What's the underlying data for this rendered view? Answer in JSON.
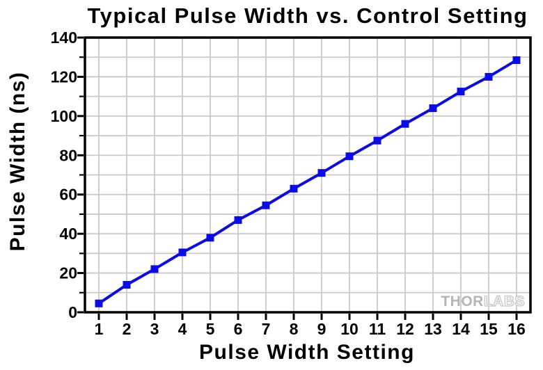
{
  "colors": {
    "line": "#0b0be8",
    "grid": "#c9c9c9",
    "frame": "#000000",
    "background": "#ffffff",
    "watermark_solid": "#b5b5b5",
    "watermark_outline": "#c3c3c3"
  },
  "watermark": {
    "solid": "THOR",
    "outline": "LABS"
  },
  "chart_data": {
    "type": "line",
    "title": "Typical Pulse Width vs. Control Setting",
    "xlabel": "Pulse Width Setting",
    "ylabel": "Pulse Width (ns)",
    "x": [
      1,
      2,
      3,
      4,
      5,
      6,
      7,
      8,
      9,
      10,
      11,
      12,
      13,
      14,
      15,
      16
    ],
    "y": [
      4.5,
      14,
      22,
      30.5,
      38,
      47,
      54.5,
      63,
      71,
      79.5,
      87.5,
      96,
      104,
      112.5,
      120,
      128.5
    ],
    "xlim": [
      0.5,
      16.5
    ],
    "ylim": [
      0,
      140
    ],
    "x_tick_labels": [
      "1",
      "2",
      "3",
      "4",
      "5",
      "6",
      "7",
      "8",
      "9",
      "10",
      "11",
      "12",
      "13",
      "14",
      "15",
      "16"
    ],
    "y_tick_labels": [
      "0",
      "20",
      "40",
      "60",
      "80",
      "100",
      "120",
      "140"
    ],
    "y_major_step": 20,
    "y_minor_step": 10,
    "grid": "vertical lines at every integer setting; horizontal lines every 10 ns",
    "marker": "square",
    "line_width": 4,
    "legend": "none"
  }
}
